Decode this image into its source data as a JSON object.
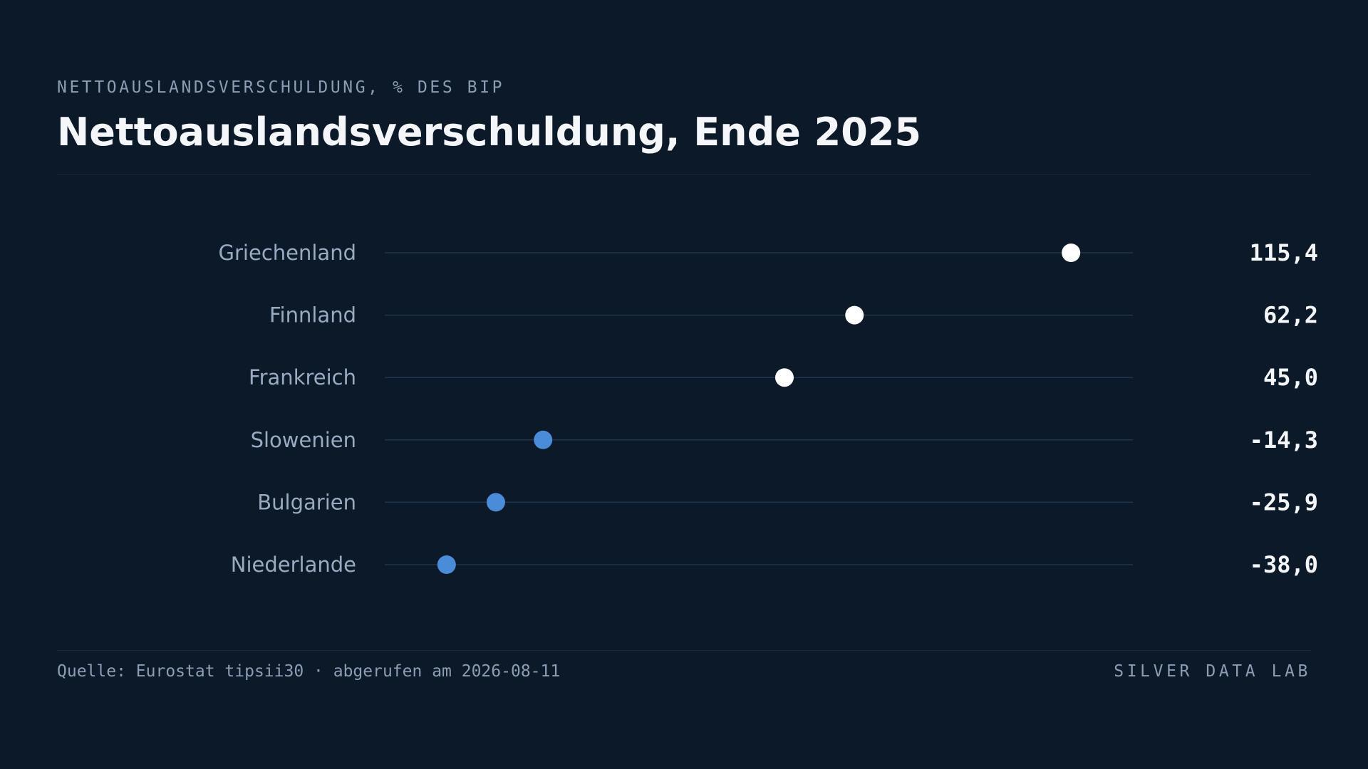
{
  "header": {
    "kicker": "NETTOAUSLANDSVERSCHULDUNG, % DES BIP",
    "title": "Nettoauslandsverschuldung, Ende 2025"
  },
  "footer": {
    "source": "Quelle: Eurostat tipsii30 · abgerufen am 2026-08-11",
    "brand": "SILVER DATA LAB"
  },
  "colors": {
    "background": "#0c1929",
    "positive_dot": "#ffffff",
    "negative_dot": "#4a8cd8",
    "track": "#22344a",
    "label": "#9aaac0",
    "value": "#f4f6f9"
  },
  "chart_data": {
    "type": "dot",
    "title": "Nettoauslandsverschuldung, Ende 2025",
    "unit": "% des BIP",
    "categories": [
      "Griechenland",
      "Finnland",
      "Frankreich",
      "Slowenien",
      "Bulgarien",
      "Niederlande"
    ],
    "values": [
      115.4,
      62.2,
      45.0,
      -14.3,
      -25.9,
      -38.0
    ],
    "value_labels": [
      "115,4",
      "62,2",
      "45,0",
      "-14,3",
      "-25,9",
      "-38,0"
    ],
    "xlim": [
      -53.2,
      130.6
    ],
    "grid": false,
    "legend": "none"
  }
}
